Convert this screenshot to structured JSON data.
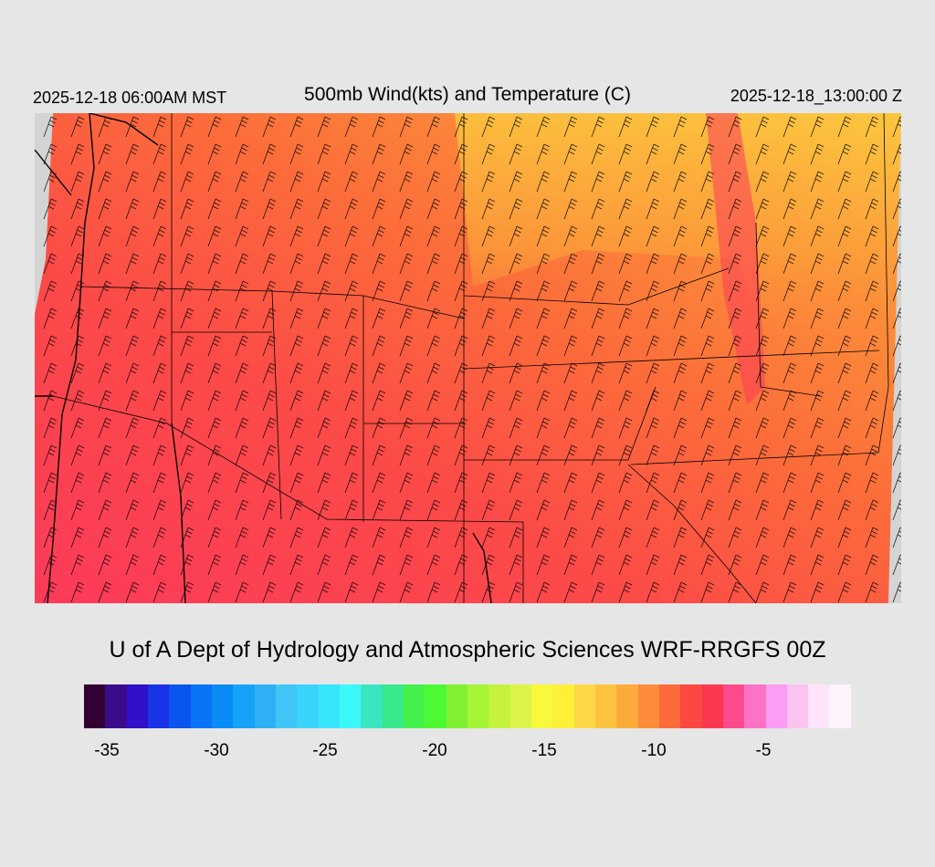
{
  "header": {
    "valid_local": "2025-12-18 06:00AM MST",
    "title": "500mb Wind(kts) and Temperature (C)",
    "valid_utc": "2025-12-18_13:00:00 Z"
  },
  "credit": "U of A Dept of Hydrology and Atmospheric Sciences WRF-RRGFS 00Z",
  "colorbar": {
    "colors": [
      "#330033",
      "#3a0c8c",
      "#3010c8",
      "#1834e6",
      "#0a54f0",
      "#0a74f6",
      "#0a8cf6",
      "#16a2f8",
      "#2eb0f6",
      "#40c6f6",
      "#3ad4fa",
      "#36e6fa",
      "#3af8fa",
      "#3ae6c0",
      "#38e88a",
      "#44f04a",
      "#4cfa34",
      "#80f032",
      "#a6f438",
      "#c4f23e",
      "#dcf44a",
      "#f8f83c",
      "#fef036",
      "#fed846",
      "#fcc43e",
      "#fcaa3a",
      "#fc8c3a",
      "#fc6a3a",
      "#fc4840",
      "#fc3850",
      "#fc4a8c",
      "#fc72c6",
      "#fc9cf2",
      "#fcc2f0",
      "#fde4f8",
      "#fdf4fd"
    ],
    "ticks": [
      "-35",
      "-30",
      "-25",
      "-20",
      "-15",
      "-10",
      "-5"
    ]
  },
  "map": {
    "temperature_range_c": [
      -35,
      -2
    ],
    "wind_barb_spacing": "regular grid"
  }
}
